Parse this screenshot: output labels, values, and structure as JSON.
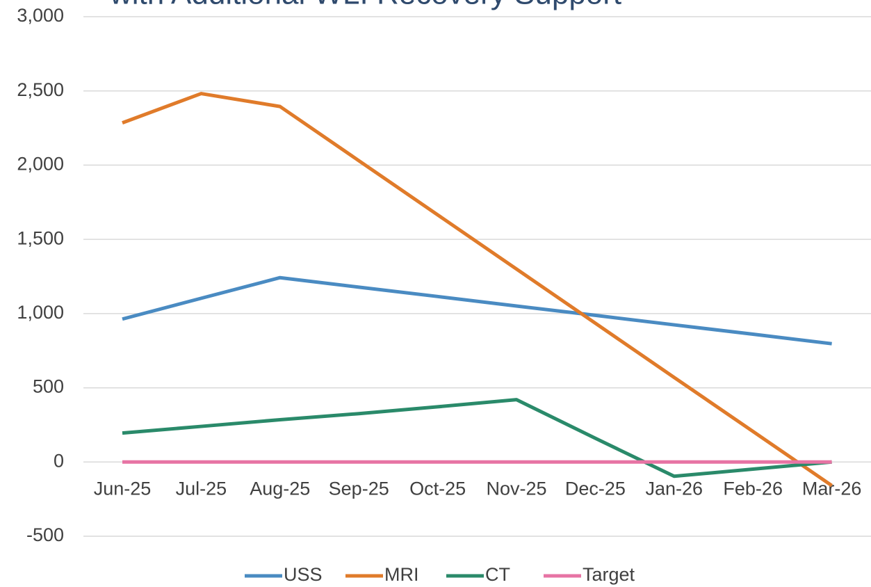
{
  "chart_data": {
    "type": "line",
    "title": "with Additional WLI Recovery Support",
    "categories": [
      "Jun-25",
      "Jul-25",
      "Aug-25",
      "Sep-25",
      "Oct-25",
      "Nov-25",
      "Dec-25",
      "Jan-26",
      "Feb-26",
      "Mar-26"
    ],
    "series": [
      {
        "name": "USS",
        "color": "#4a8bc2",
        "values": [
          963,
          1103,
          1242,
          1178,
          1115,
          1051,
          988,
          924,
          861,
          797
        ]
      },
      {
        "name": "MRI",
        "color": "#e07b2a",
        "values": [
          2285,
          2482,
          2395,
          2030,
          1665,
          1300,
          935,
          570,
          206,
          -159
        ]
      },
      {
        "name": "CT",
        "color": "#2a8a6a",
        "values": [
          195,
          240,
          285,
          326,
          372,
          420,
          160,
          -96,
          -48,
          0
        ]
      },
      {
        "name": "Target",
        "color": "#e774a4",
        "values": [
          0,
          0,
          0,
          0,
          0,
          0,
          0,
          0,
          0,
          0
        ]
      }
    ],
    "ylim": [
      -500,
      3000
    ],
    "yticks": [
      -500,
      0,
      500,
      {
        "value": 1000,
        "label": "1,000"
      },
      {
        "value": 1500,
        "label": "1,500"
      },
      {
        "value": 2000,
        "label": "2,000"
      },
      {
        "value": 2500,
        "label": "2,500"
      },
      {
        "value": 3000,
        "label": "3,000"
      }
    ],
    "grid": true,
    "legend": "bottom"
  }
}
